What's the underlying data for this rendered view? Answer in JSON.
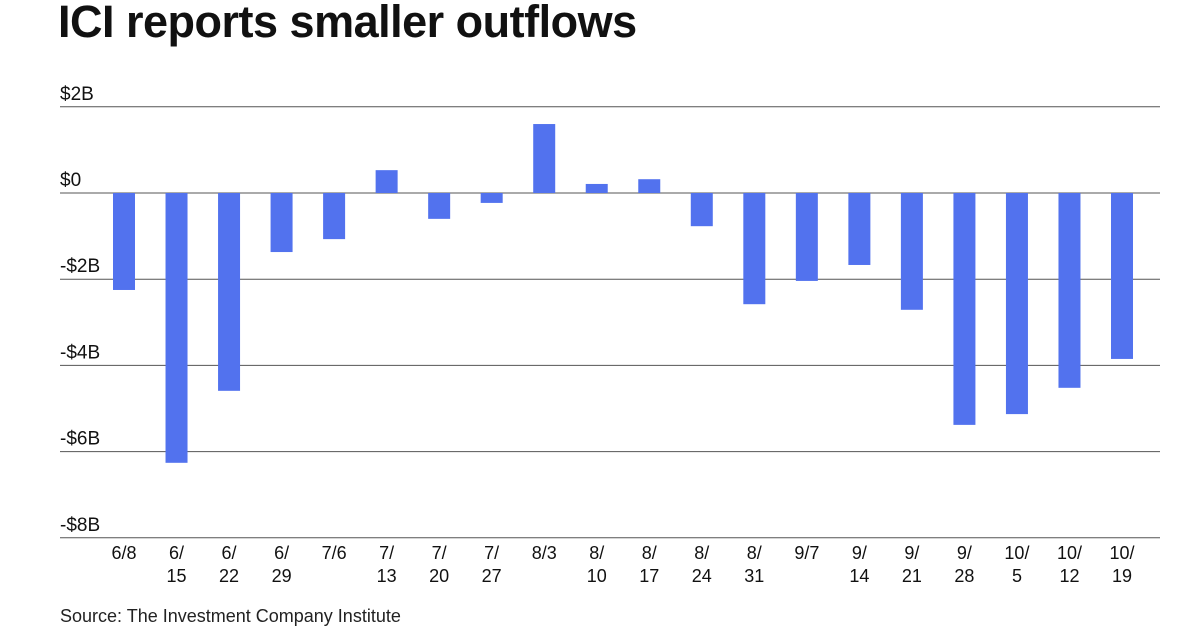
{
  "chart_data": {
    "type": "bar",
    "title": "ICI reports smaller outflows",
    "source": "Source: The Investment Company Institute",
    "xlabel": "",
    "ylabel": "",
    "ylim": [
      -8,
      2
    ],
    "yticks": [
      2,
      0,
      -2,
      -4,
      -6,
      -8
    ],
    "ytick_labels": [
      "$2B",
      "$0",
      "-$2B",
      "-$4B",
      "-$6B",
      "-$8B"
    ],
    "grid": true,
    "bar_color": "#5272EE",
    "categories": [
      [
        "6/8",
        ""
      ],
      [
        "6/",
        "15"
      ],
      [
        "6/",
        "22"
      ],
      [
        "6/",
        "29"
      ],
      [
        "7/6",
        ""
      ],
      [
        "7/",
        "13"
      ],
      [
        "7/",
        "20"
      ],
      [
        "7/",
        "27"
      ],
      [
        "8/3",
        ""
      ],
      [
        "8/",
        "10"
      ],
      [
        "8/",
        "17"
      ],
      [
        "8/",
        "24"
      ],
      [
        "8/",
        "31"
      ],
      [
        "9/7",
        ""
      ],
      [
        "9/",
        "14"
      ],
      [
        "9/",
        "21"
      ],
      [
        "9/",
        "28"
      ],
      [
        "10/",
        "5"
      ],
      [
        "10/",
        "12"
      ],
      [
        "10/",
        "19"
      ]
    ],
    "values": [
      -2.25,
      -6.26,
      -4.59,
      -1.37,
      -1.07,
      0.53,
      -0.6,
      -0.23,
      1.6,
      0.21,
      0.32,
      -0.77,
      -2.58,
      -2.04,
      -1.67,
      -2.71,
      -5.38,
      -5.13,
      -4.52,
      -3.85
    ]
  }
}
